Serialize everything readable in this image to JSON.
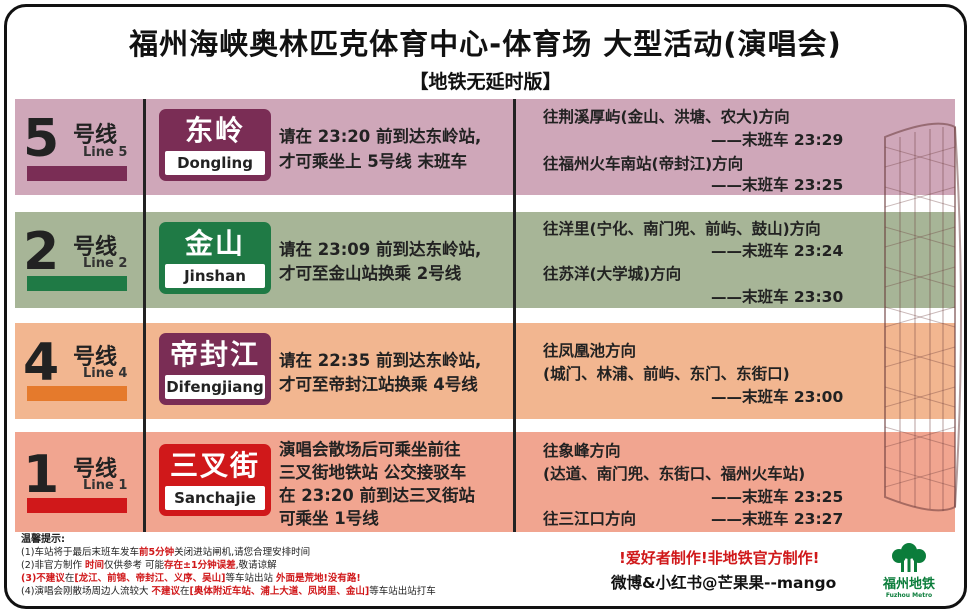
{
  "title": "福州海峡奥林匹克体育中心-体育场 大型活动(演唱会)",
  "subtitle": "【地铁无延时版】",
  "lines": [
    {
      "num": "5",
      "cn": "号线",
      "en": "Line 5",
      "color": "#7a2d55",
      "station_cn": "东岭",
      "station_en": "Dongling",
      "station_color": "#7a2d55",
      "instr1": "请在 23:20 前到达东岭站,",
      "instr2": "才可乘坐上 5号线 末班车",
      "dir1": "往荆溪厚屿(金山、洪塘、农大)方向",
      "last1": "——末班车 23:29",
      "dir2": "往福州火车南站(帝封江)方向",
      "last2": "——末班车 23:25"
    },
    {
      "num": "2",
      "cn": "号线",
      "en": "Line 2",
      "color": "#1f7a45",
      "station_cn": "金山",
      "station_en": "Jinshan",
      "station_color": "#1f7a45",
      "instr1": "请在 23:09 前到达东岭站,",
      "instr2": "才可至金山站换乘 2号线",
      "dir1": "往洋里(宁化、南门兜、前屿、鼓山)方向",
      "last1": "——末班车 23:24",
      "dir2": "往苏洋(大学城)方向",
      "last2": "——末班车 23:30"
    },
    {
      "num": "4",
      "cn": "号线",
      "en": "Line 4",
      "color": "#e57a2c",
      "station_cn": "帝封江",
      "station_en": "Difengjiang",
      "station_color": "#7a2d55",
      "instr1": "请在 22:35 前到达东岭站,",
      "instr2": "才可至帝封江站换乘 4号线",
      "dir1": "往凤凰池方向",
      "dir1b": "(城门、林浦、前屿、东门、东街口)",
      "last1": "——末班车 23:00"
    },
    {
      "num": "1",
      "cn": "号线",
      "en": "Line 1",
      "color": "#d0181a",
      "station_cn": "三叉街",
      "station_en": "Sanchajie",
      "station_color": "#d0181a",
      "instr1": "演唱会散场后可乘坐前往",
      "instr2": "三叉街地铁站 公交接驳车",
      "instr3": "在 23:20 前到达三叉街站",
      "instr4": "可乘坐 1号线",
      "dir1": "往象峰方向",
      "dir1b": "(达道、南门兜、东街口、福州火车站)",
      "last1": "——末班车 23:25",
      "dir2": "往三江口方向",
      "last2": "——末班车 23:27"
    }
  ],
  "notes": {
    "title": "温馨提示:",
    "n1a": "(1)车站将于最后末班车发车",
    "n1b": "前5分钟",
    "n1c": "关闭进站闸机,请您合理安排时间",
    "n2a": "(2)非官方制作 ",
    "n2b": "时间",
    "n2c": "仅供参考 可能",
    "n2d": "存在±1分钟误差",
    "n2e": ",敬请谅解",
    "n3a": "(3)",
    "n3b": "不建议",
    "n3c": "在",
    "n3d": "[龙江、前锦、帝封江、义序、吴山]",
    "n3e": "等车站出站 ",
    "n3f": "外面是荒地!没有路!",
    "n4a": "(4)演唱会刚散场周边人流较大 ",
    "n4b": "不建议",
    "n4c": "在",
    "n4d": "[奥体附近车站、浦上大道、凤岗里、金山]",
    "n4e": "等车站出站打车"
  },
  "credits": {
    "made": "!爱好者制作!非地铁官方制作!",
    "weibo": "微博&小红书@芒果果--mango"
  },
  "logo": {
    "cn": "福州地铁",
    "en": "Fuzhou Metro",
    "color": "#0b7d3b"
  }
}
